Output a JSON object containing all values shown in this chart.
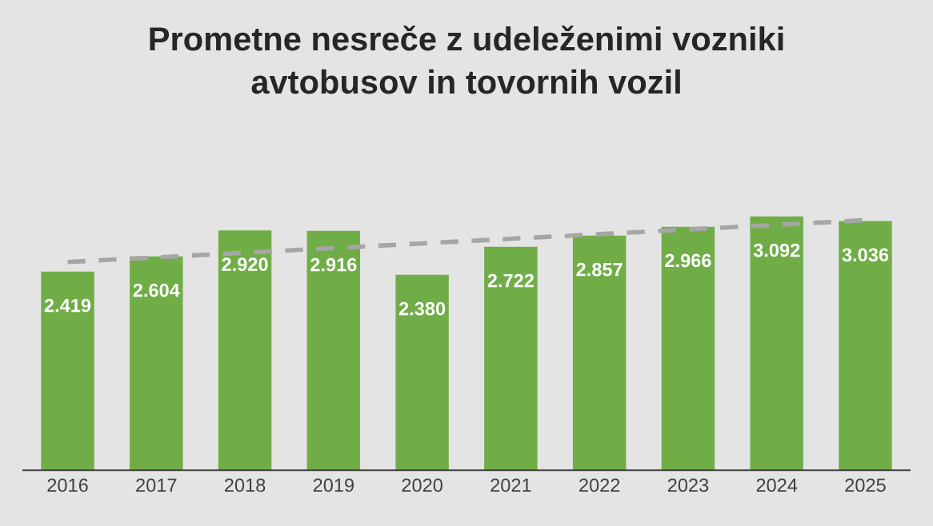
{
  "chart_data": {
    "type": "bar",
    "title": "Prometne nesreče z udeleženimi vozniki\navtobusov in tovornih vozil",
    "categories": [
      "2016",
      "2017",
      "2018",
      "2019",
      "2020",
      "2021",
      "2022",
      "2023",
      "2024",
      "2025"
    ],
    "series": [
      {
        "values": [
          2419,
          2604,
          2920,
          2916,
          2380,
          2722,
          2857,
          2966,
          3092,
          3036
        ],
        "color": "#70ad47",
        "value_labels": [
          "2.419",
          "2.604",
          "2.920",
          "2.916",
          "2.380",
          "2.722",
          "2.857",
          "2.966",
          "3.092",
          "3.036"
        ]
      },
      {
        "type": "line",
        "values": [
          2536,
          null,
          null,
          null,
          null,
          null,
          null,
          null,
          null,
          3046
        ],
        "color": "#a6a6a6",
        "line_style": "dashed"
      }
    ],
    "tick_labels": "x",
    "grid": false,
    "legend": false
  }
}
